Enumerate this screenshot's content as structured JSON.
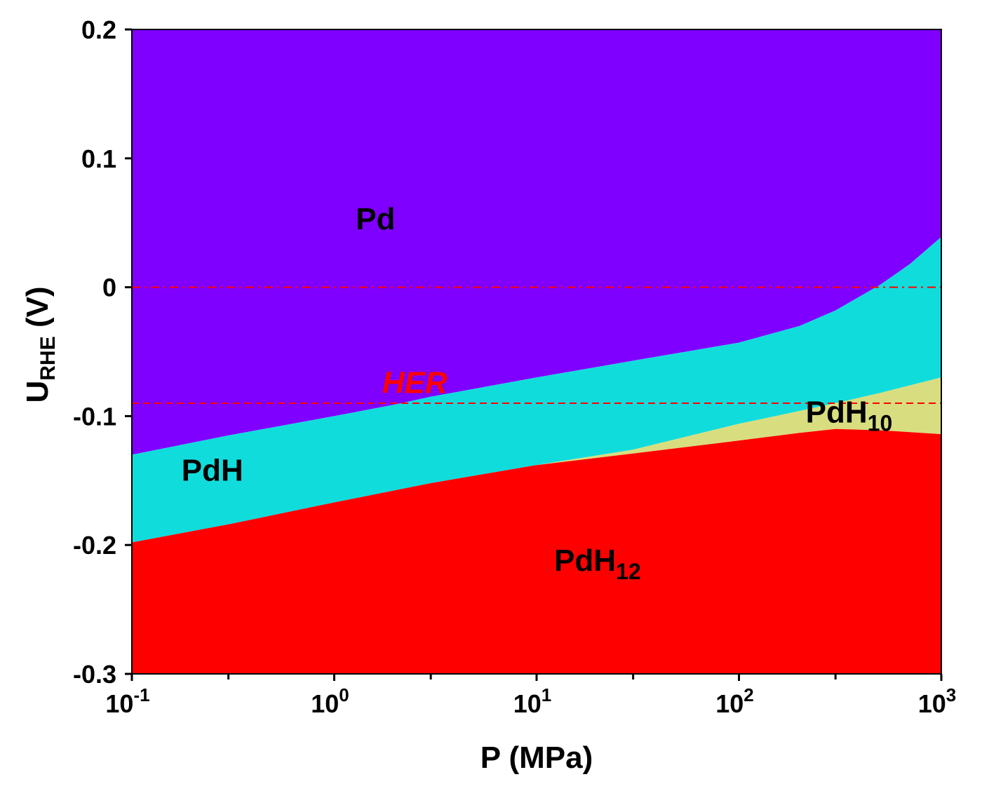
{
  "chart_data": {
    "type": "area",
    "xscale": "log",
    "xlim": [
      0.1,
      1000
    ],
    "ylim": [
      -0.3,
      0.2
    ],
    "x_ticks": [
      {
        "value": 0.1,
        "base": "10",
        "exp": "-1"
      },
      {
        "value": 1,
        "base": "10",
        "exp": "0"
      },
      {
        "value": 10,
        "base": "10",
        "exp": "1"
      },
      {
        "value": 100,
        "base": "10",
        "exp": "2"
      },
      {
        "value": 1000,
        "base": "10",
        "exp": "3"
      }
    ],
    "x_minor_ticks": [
      0.3,
      3,
      30,
      300
    ],
    "y_ticks": [
      {
        "value": 0.2,
        "label": "0.2"
      },
      {
        "value": 0.1,
        "label": "0.1"
      },
      {
        "value": 0,
        "label": "0"
      },
      {
        "value": -0.1,
        "label": "-0.1"
      },
      {
        "value": -0.2,
        "label": "-0.2"
      },
      {
        "value": -0.3,
        "label": "-0.3"
      }
    ],
    "xlabel": "P (MPa)",
    "ylabel": {
      "main": "U",
      "sub": "RHE",
      "rest": " (V)"
    },
    "boundaries": {
      "pd_pdh": {
        "x": [
          0.1,
          0.3,
          1,
          2,
          3,
          10,
          30,
          100,
          200,
          300,
          500,
          700,
          1000
        ],
        "y": [
          -0.13,
          -0.115,
          -0.1,
          -0.091,
          -0.085,
          -0.07,
          -0.057,
          -0.043,
          -0.03,
          -0.018,
          0.002,
          0.018,
          0.039
        ]
      },
      "pdh_pdh10": {
        "x": [
          0.1,
          0.3,
          1,
          3,
          10,
          30,
          100,
          200,
          300,
          500,
          1000
        ],
        "y": [
          -0.198,
          -0.184,
          -0.167,
          -0.152,
          -0.138,
          -0.126,
          -0.106,
          -0.096,
          -0.09,
          -0.082,
          -0.07
        ]
      },
      "pdh10_pdh12": {
        "x": [
          0.1,
          0.3,
          1,
          3,
          10,
          30,
          100,
          200,
          300,
          500,
          1000
        ],
        "y": [
          -0.198,
          -0.184,
          -0.167,
          -0.152,
          -0.138,
          -0.129,
          -0.119,
          -0.113,
          -0.11,
          -0.111,
          -0.114
        ]
      }
    },
    "regions": [
      {
        "name": "Pd",
        "color": "#7f00ff",
        "label_x": 1.6,
        "label_y": 0.045
      },
      {
        "name": "PdH",
        "color": "#11dcdc",
        "label_x": 0.25,
        "label_y": -0.15
      },
      {
        "name": "PdH",
        "sub": "10",
        "color": "#d8de7f",
        "label_x": 350,
        "label_y": -0.105
      },
      {
        "name": "PdH",
        "sub": "12",
        "color": "#ff0000",
        "label_x": 20,
        "label_y": -0.22
      }
    ],
    "reference_lines": [
      {
        "y": 0,
        "style": "dash-dot",
        "color": "#ff0000"
      },
      {
        "y": -0.09,
        "style": "dashed",
        "color": "#ff0000",
        "label": "HER",
        "label_x": 2.5,
        "label_y": -0.082
      }
    ]
  }
}
